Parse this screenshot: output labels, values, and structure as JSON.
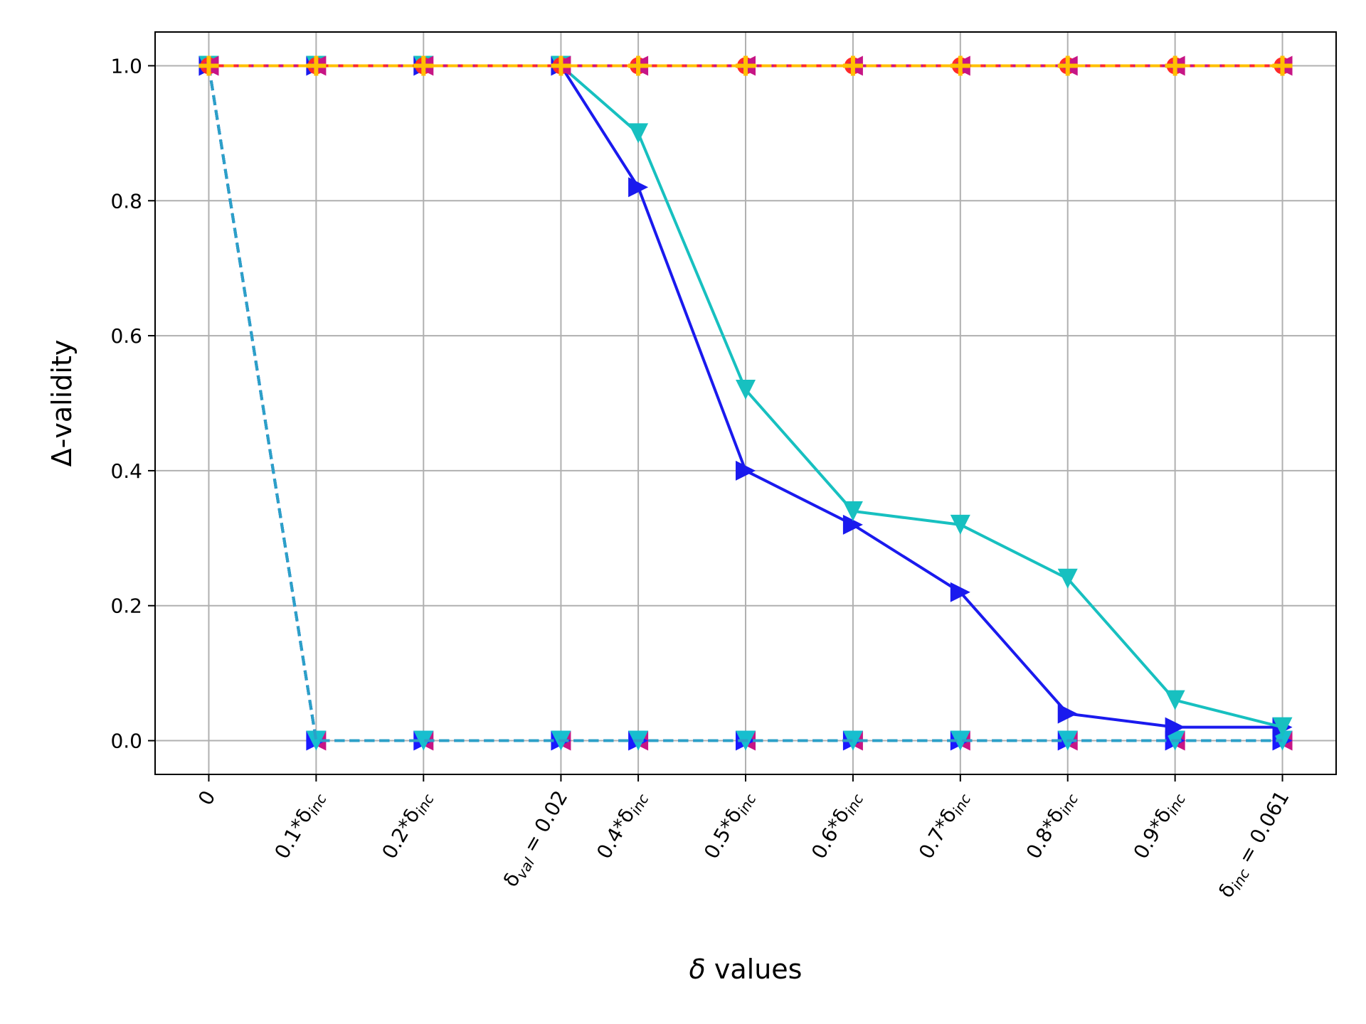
{
  "chart_data": {
    "type": "line",
    "xlabel_italic": "δ",
    "xlabel_rest": " values",
    "ylabel": "Δ-validity",
    "x": [
      0,
      0.1,
      0.2,
      0.328,
      0.4,
      0.5,
      0.6,
      0.7,
      0.8,
      0.9,
      1.0
    ],
    "xlim": [
      -0.05,
      1.05
    ],
    "ylim": [
      -0.05,
      1.05
    ],
    "grid": true,
    "xtick_labels": [
      {
        "main": "0",
        "sub": "",
        "suffix": ""
      },
      {
        "main": "0.1*δ",
        "sub": "inc",
        "suffix": ""
      },
      {
        "main": "0.2*δ",
        "sub": "inc",
        "suffix": ""
      },
      {
        "main": "δ",
        "sub": "val",
        "suffix": " = 0.02"
      },
      {
        "main": "0.4*δ",
        "sub": "inc",
        "suffix": ""
      },
      {
        "main": "0.5*δ",
        "sub": "inc",
        "suffix": ""
      },
      {
        "main": "0.6*δ",
        "sub": "inc",
        "suffix": ""
      },
      {
        "main": "0.7*δ",
        "sub": "inc",
        "suffix": ""
      },
      {
        "main": "0.8*δ",
        "sub": "inc",
        "suffix": ""
      },
      {
        "main": "0.9*δ",
        "sub": "inc",
        "suffix": ""
      },
      {
        "main": "δ",
        "sub": "inc",
        "suffix": " = 0.061"
      }
    ],
    "yticks": [
      0.0,
      0.2,
      0.4,
      0.6,
      0.8,
      1.0
    ],
    "ytick_labels": [
      "0.0",
      "0.2",
      "0.4",
      "0.6",
      "0.8",
      "1.0"
    ],
    "series": [
      {
        "color": "#c71585",
        "dash": "dashed",
        "marker": "triangle-left",
        "values": [
          1,
          0,
          0,
          0,
          0,
          0,
          0,
          0,
          0,
          0,
          0
        ]
      },
      {
        "color": "#1a1aff",
        "dash": "dashed",
        "marker": "triangle-right",
        "values": [
          1,
          0,
          0,
          0,
          0,
          0,
          0,
          0,
          0,
          0,
          0
        ]
      },
      {
        "color": "#17becf",
        "dash": "dashed",
        "marker": "triangle-down",
        "values": [
          1,
          0,
          0,
          0,
          0,
          0,
          0,
          0,
          0,
          0,
          0
        ]
      },
      {
        "color": "#2ca0c8",
        "dash": "dashed",
        "marker": "none",
        "values": [
          1,
          0,
          0,
          0,
          0,
          0,
          0,
          0,
          0,
          0,
          0
        ]
      },
      {
        "color": "#1a1aee",
        "dash": "solid",
        "marker": "triangle-right",
        "values": [
          1,
          1,
          1,
          1,
          0.82,
          0.4,
          0.32,
          0.22,
          0.04,
          0.02,
          0.02
        ]
      },
      {
        "color": "#17c0c0",
        "dash": "solid",
        "marker": "triangle-down",
        "values": [
          1,
          1,
          1,
          1,
          0.9,
          0.52,
          0.34,
          0.32,
          0.24,
          0.06,
          0.02
        ]
      },
      {
        "color": "#ff2a2a",
        "dash": "solid",
        "marker": "circle",
        "values": [
          1,
          1,
          1,
          1,
          1,
          1,
          1,
          1,
          1,
          1,
          1
        ]
      },
      {
        "color": "#c71585",
        "dash": "dotted",
        "marker": "triangle-left",
        "values": [
          1,
          1,
          1,
          1,
          1,
          1,
          1,
          1,
          1,
          1,
          1
        ]
      },
      {
        "color": "#ffc000",
        "dash": "dashed",
        "marker": "plus",
        "values": [
          1,
          1,
          1,
          1,
          1,
          1,
          1,
          1,
          1,
          1,
          1
        ]
      }
    ]
  }
}
